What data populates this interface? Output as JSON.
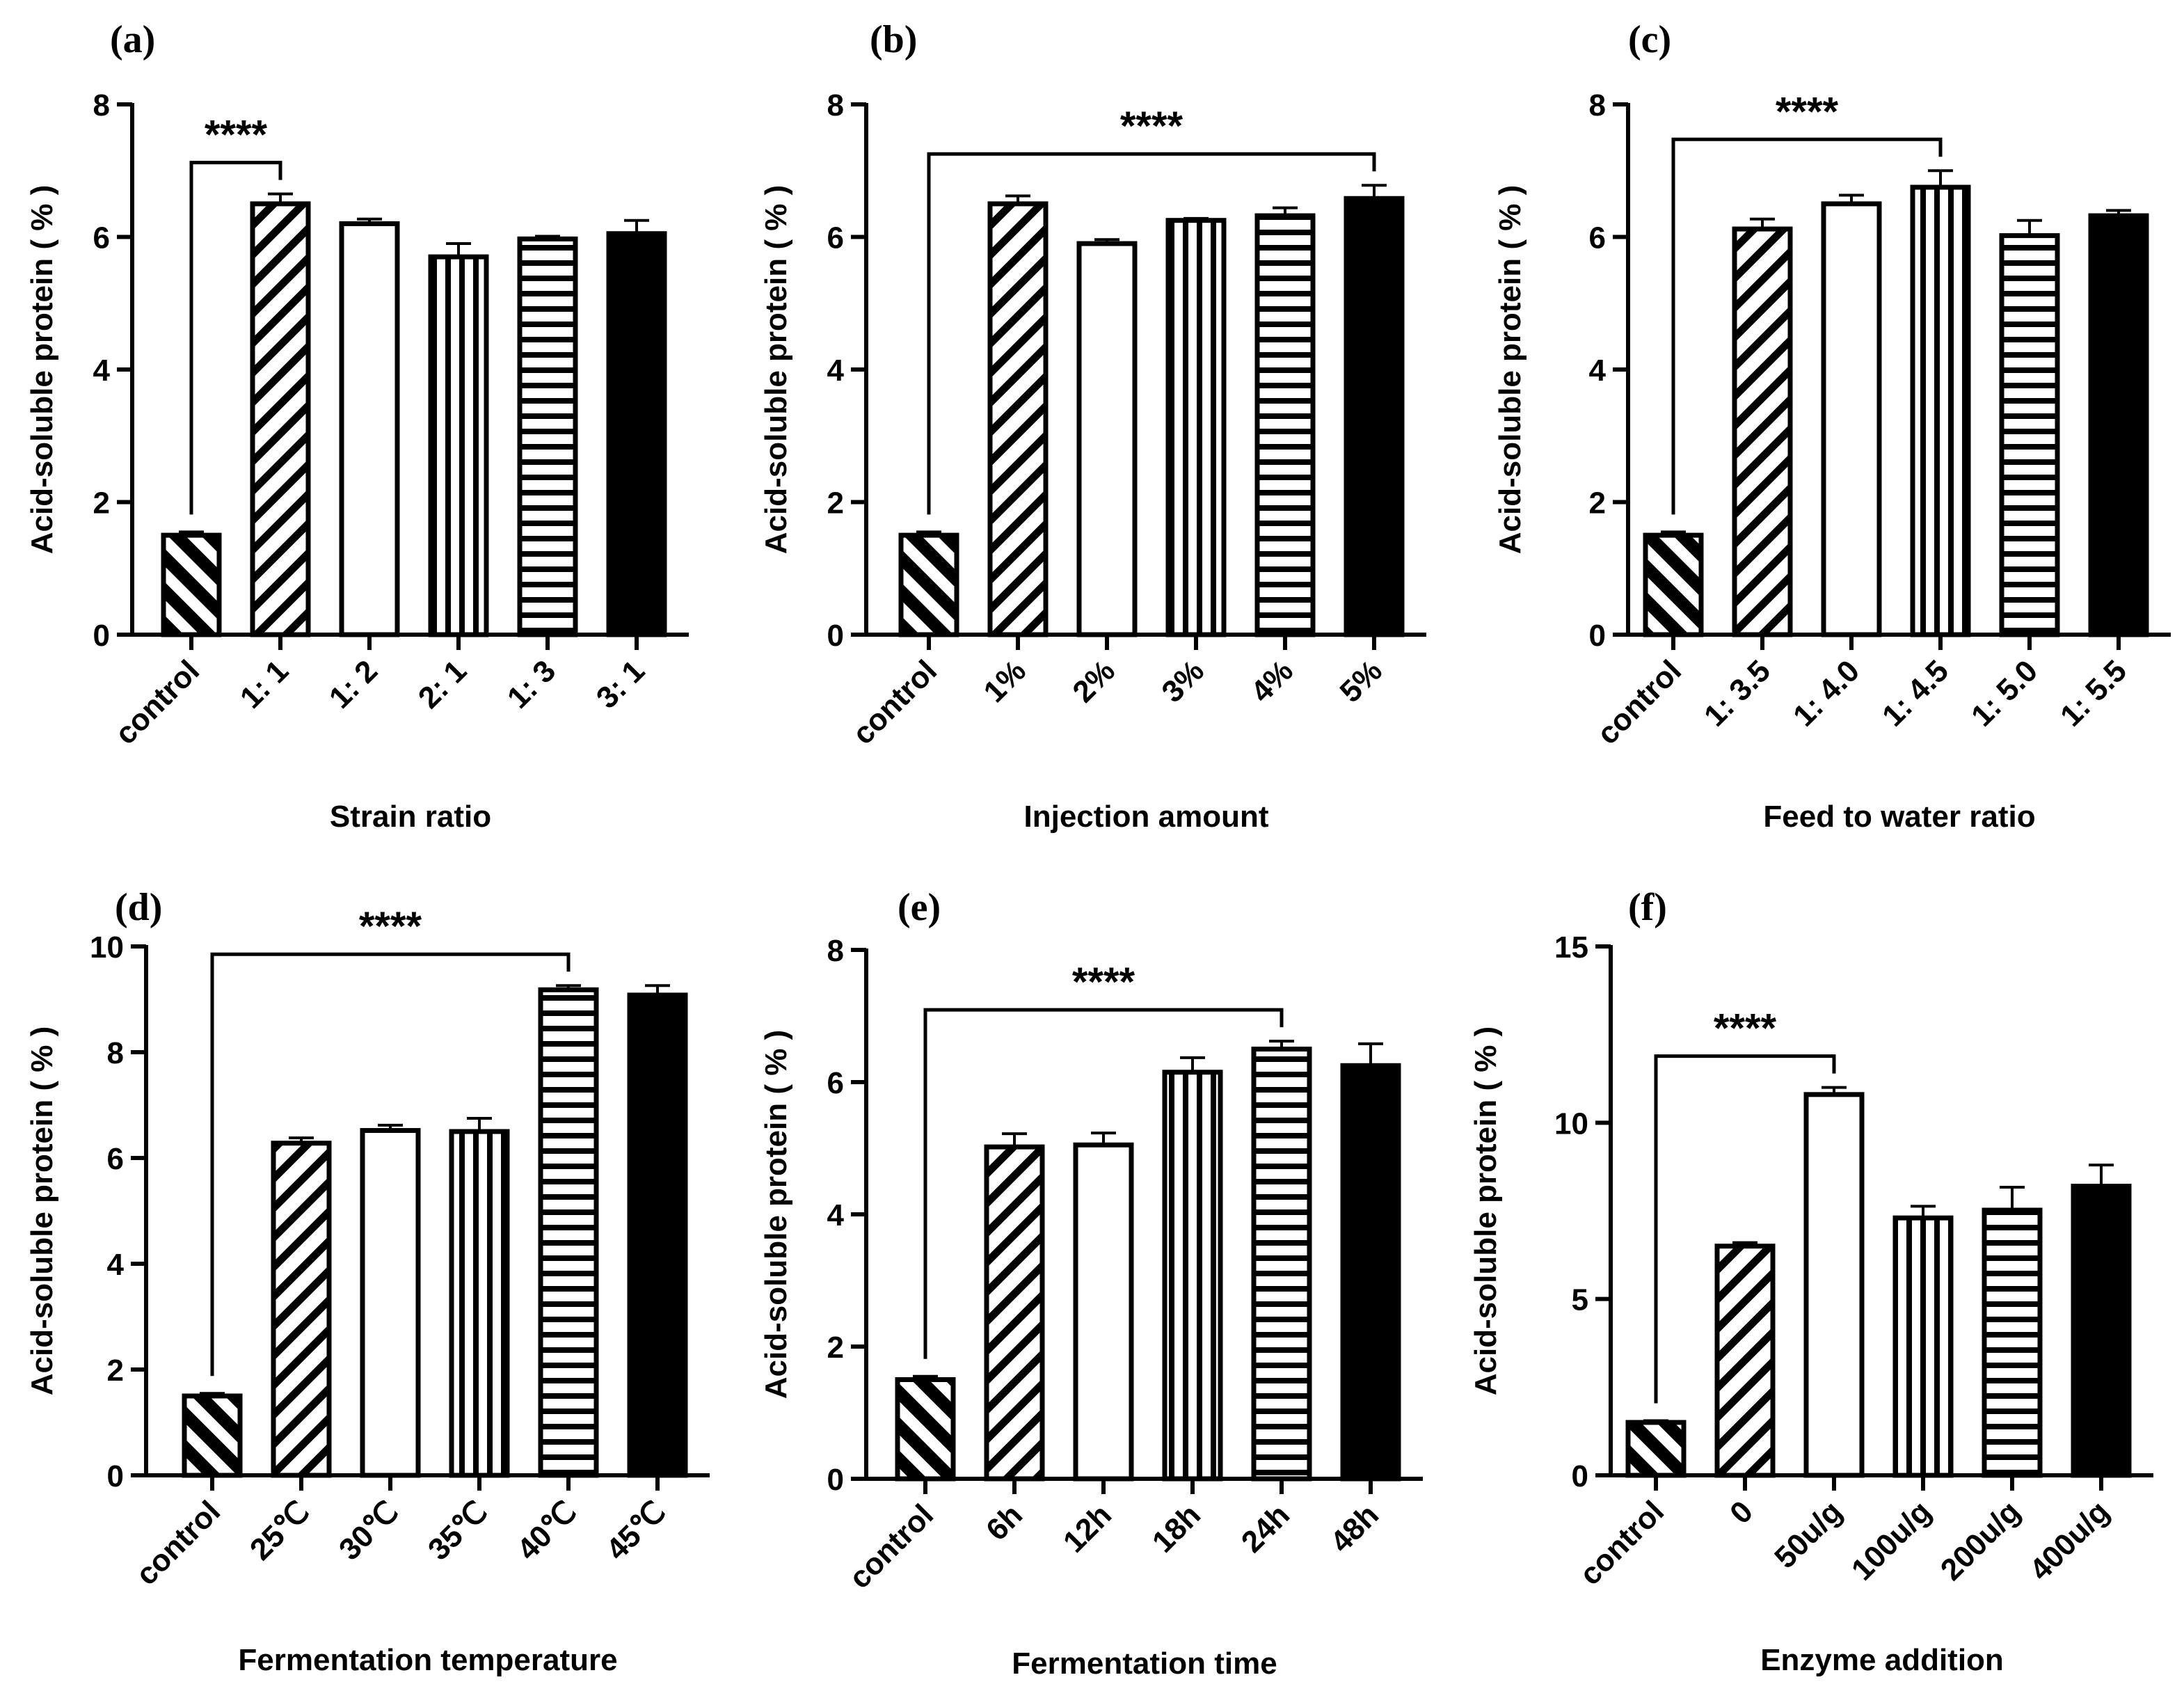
{
  "y_axis_label": "Acid-soluble protein ( % )",
  "chart_data": [
    {
      "panel": "(a)",
      "type": "bar",
      "xlabel": "Strain ratio",
      "ylabel": "Acid-soluble protein ( % )",
      "ylim": [
        0,
        8
      ],
      "yticks": [
        0,
        2,
        4,
        6,
        8
      ],
      "categories": [
        "control",
        "1: 1",
        "1: 2",
        "2: 1",
        "1: 3",
        "3: 1"
      ],
      "values": [
        1.5,
        6.5,
        6.2,
        5.7,
        5.97,
        6.05
      ],
      "errors": [
        0.05,
        0.15,
        0.07,
        0.2,
        0.04,
        0.2
      ],
      "patterns": [
        "diag-back",
        "diag-fwd",
        "none",
        "vert",
        "horiz",
        "solid"
      ],
      "significance": {
        "label": "****",
        "from": 0,
        "to": 1
      }
    },
    {
      "panel": "(b)",
      "type": "bar",
      "xlabel": "Injection amount",
      "ylabel": "Acid-soluble protein ( % )",
      "ylim": [
        0,
        8
      ],
      "yticks": [
        0,
        2,
        4,
        6,
        8
      ],
      "categories": [
        "control",
        "1%",
        "2%",
        "3%",
        "4%",
        "5%"
      ],
      "values": [
        1.5,
        6.5,
        5.9,
        6.25,
        6.32,
        6.58
      ],
      "errors": [
        0.05,
        0.12,
        0.06,
        0.03,
        0.12,
        0.2
      ],
      "patterns": [
        "diag-back",
        "diag-fwd",
        "none",
        "vert",
        "horiz",
        "solid"
      ],
      "significance": {
        "label": "****",
        "from": 0,
        "to": 5
      }
    },
    {
      "panel": "(c)",
      "type": "bar",
      "xlabel": "Feed to water ratio",
      "ylabel": "Acid-soluble protein ( % )",
      "ylim": [
        0,
        8
      ],
      "yticks": [
        0,
        2,
        4,
        6,
        8
      ],
      "categories": [
        "control",
        "1: 3.5",
        "1: 4.0",
        "1: 4.5",
        "1: 5.0",
        "1: 5.5"
      ],
      "values": [
        1.5,
        6.12,
        6.5,
        6.75,
        6.02,
        6.32
      ],
      "errors": [
        0.05,
        0.15,
        0.13,
        0.25,
        0.23,
        0.08
      ],
      "patterns": [
        "diag-back",
        "diag-fwd",
        "none",
        "vert",
        "horiz",
        "solid"
      ],
      "significance": {
        "label": "****",
        "from": 0,
        "to": 3
      }
    },
    {
      "panel": "(d)",
      "type": "bar",
      "xlabel": "Fermentation temperature",
      "ylabel": "Acid-soluble protein ( % )",
      "ylim": [
        0,
        10
      ],
      "yticks": [
        0,
        2,
        4,
        6,
        8,
        10
      ],
      "categories": [
        "control",
        "25℃",
        "30℃",
        "35℃",
        "40℃",
        "45℃"
      ],
      "values": [
        1.5,
        6.28,
        6.52,
        6.5,
        9.18,
        9.08
      ],
      "errors": [
        0.05,
        0.1,
        0.1,
        0.25,
        0.08,
        0.18
      ],
      "patterns": [
        "diag-back",
        "diag-fwd",
        "none",
        "vert",
        "horiz",
        "solid"
      ],
      "significance": {
        "label": "****",
        "from": 0,
        "to": 4
      }
    },
    {
      "panel": "(e)",
      "type": "bar",
      "xlabel": "Fermentation time",
      "ylabel": "Acid-soluble protein ( % )",
      "ylim": [
        0,
        8
      ],
      "yticks": [
        0,
        2,
        4,
        6,
        8
      ],
      "categories": [
        "control",
        "6h",
        "12h",
        "18h",
        "24h",
        "48h"
      ],
      "values": [
        1.5,
        5.02,
        5.05,
        6.15,
        6.5,
        6.25
      ],
      "errors": [
        0.05,
        0.2,
        0.18,
        0.22,
        0.12,
        0.33
      ],
      "patterns": [
        "diag-back",
        "diag-fwd",
        "none",
        "vert",
        "horiz",
        "solid"
      ],
      "significance": {
        "label": "****",
        "from": 0,
        "to": 4
      }
    },
    {
      "panel": "(f)",
      "type": "bar",
      "xlabel": "Enzyme addition",
      "ylabel": "Acid-soluble protein ( % )",
      "ylim": [
        0,
        15
      ],
      "yticks": [
        0,
        5,
        10,
        15
      ],
      "categories": [
        "control",
        "0",
        "50u/g",
        "100u/g",
        "200u/g",
        "400u/g"
      ],
      "values": [
        1.5,
        6.5,
        10.8,
        7.3,
        7.52,
        8.2
      ],
      "errors": [
        0.05,
        0.1,
        0.2,
        0.33,
        0.65,
        0.6
      ],
      "patterns": [
        "diag-back",
        "diag-fwd",
        "none",
        "vert",
        "horiz",
        "solid"
      ],
      "significance": {
        "label": "****",
        "from": 0,
        "to": 2
      }
    }
  ]
}
